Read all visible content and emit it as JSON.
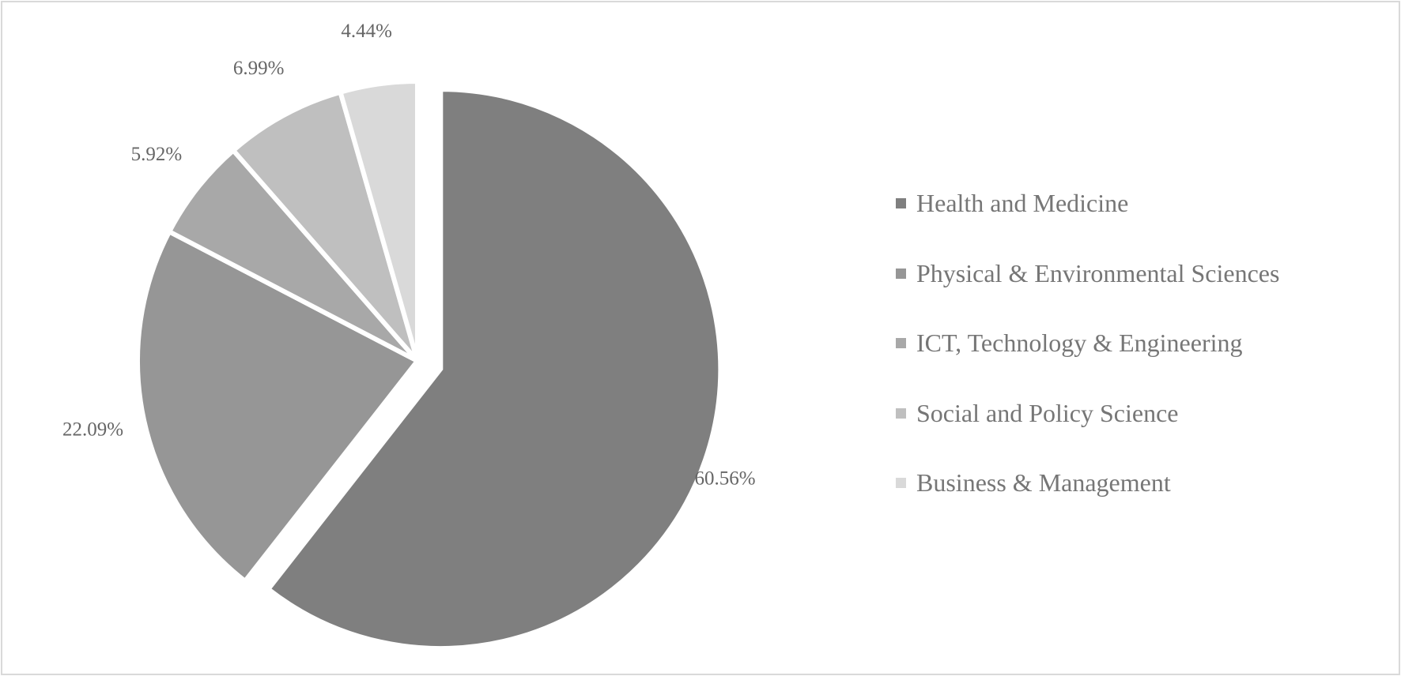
{
  "chart_data": {
    "type": "pie",
    "title": "",
    "legend_position": "right",
    "slices": [
      {
        "label": "Health and Medicine",
        "value": 60.56,
        "display": "60.56%",
        "color": "#7f7f7f",
        "exploded": true
      },
      {
        "label": "Physical & Environmental Sciences",
        "value": 22.09,
        "display": "22.09%",
        "color": "#969696",
        "exploded": false
      },
      {
        "label": "ICT, Technology & Engineering",
        "value": 5.92,
        "display": "5.92%",
        "color": "#a8a8a8",
        "exploded": false
      },
      {
        "label": "Social and Policy Science",
        "value": 6.99,
        "display": "6.99%",
        "color": "#bfbfbf",
        "exploded": false
      },
      {
        "label": "Business & Management",
        "value": 4.44,
        "display": "4.44%",
        "color": "#d9d9d9",
        "exploded": false
      }
    ]
  }
}
